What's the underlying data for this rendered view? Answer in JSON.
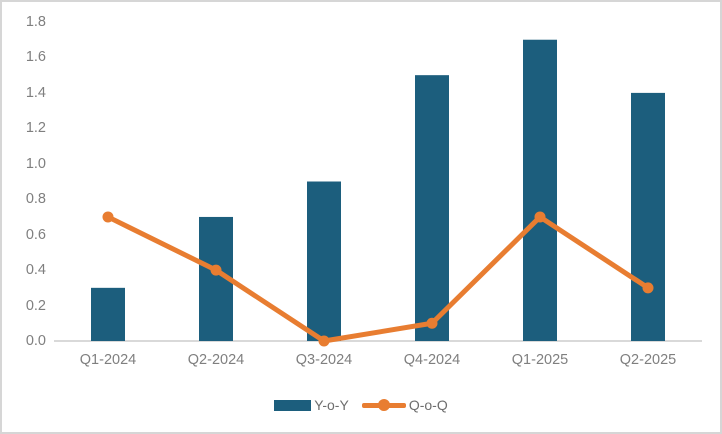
{
  "colors": {
    "bar": "#1c5e7d",
    "line": "#e87d31",
    "axis_line": "#d9d9d9",
    "tick_text": "#7f7f7f",
    "legend_text": "#6e6e6e",
    "frame_border": "#d6d6d6"
  },
  "chart_data": {
    "type": "bar",
    "subtype": "combo-bar-line",
    "title": "",
    "xlabel": "",
    "ylabel": "",
    "categories": [
      "Q1-2024",
      "Q2-2024",
      "Q3-2024",
      "Q4-2024",
      "Q1-2025",
      "Q2-2025"
    ],
    "series": [
      {
        "name": "Y-o-Y",
        "type": "bar",
        "color": "#1c5e7d",
        "values": [
          0.3,
          0.7,
          0.9,
          1.5,
          1.7,
          1.4
        ]
      },
      {
        "name": "Q-o-Q",
        "type": "line",
        "color": "#e87d31",
        "values": [
          0.7,
          0.4,
          0.0,
          0.1,
          0.7,
          0.3
        ]
      }
    ],
    "y_axis": {
      "min": 0.0,
      "max": 1.8,
      "step": 0.2,
      "tick_labels": [
        "0.0",
        "0.2",
        "0.4",
        "0.6",
        "0.8",
        "1.0",
        "1.2",
        "1.4",
        "1.6",
        "1.8"
      ]
    },
    "grid": false,
    "legend_position": "bottom"
  }
}
